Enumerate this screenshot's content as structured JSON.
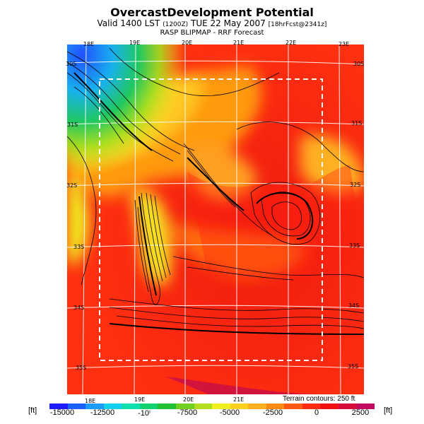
{
  "title": "OvercastDevelopment Potential",
  "subtitle_main": "Valid 1400 LST",
  "subtitle_small_1": "(1200Z)",
  "subtitle_date": "TUE 22 May 2007",
  "subtitle_small_2": "[18hrFcst@2341z]",
  "model_line": "RASP BLIPMAP - RRF Forecast",
  "lon_labels_top": [
    "18E",
    "19E",
    "20E",
    "21E",
    "22E",
    "23E"
  ],
  "lon_labels_bottom": [
    "18E",
    "19E",
    "20E",
    "21E"
  ],
  "lat_labels_left": [
    "30S",
    "31S",
    "32S",
    "33S",
    "34S",
    "35S"
  ],
  "lat_labels_right": [
    "30S",
    "31S",
    "32S",
    "33S",
    "34S",
    "35S"
  ],
  "terrain_note": "Terrain contours: 250 ft",
  "colorbar": {
    "unit_left": "[ft]",
    "unit_right": "[ft]",
    "ticks": [
      "-15000",
      "-12500",
      "-10ⁱ",
      "-7500",
      "-5000",
      "-2500",
      "0",
      "2500"
    ],
    "colors": [
      "#1c1cff",
      "#1e60ff",
      "#1a9cff",
      "#12d0ee",
      "#10e0b0",
      "#10d070",
      "#20c030",
      "#70d020",
      "#b0e020",
      "#f0f020",
      "#ffd020",
      "#ffb020",
      "#ff8a10",
      "#ff5a10",
      "#ff2a10",
      "#f01010",
      "#d80a3a",
      "#c00a60"
    ]
  }
}
